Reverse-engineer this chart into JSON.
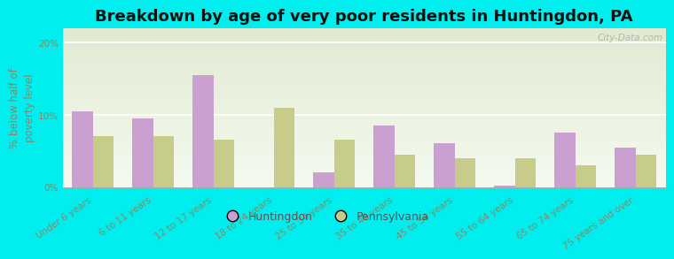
{
  "title": "Breakdown by age of very poor residents in Huntingdon, PA",
  "ylabel": "% below half of\npoverty level",
  "categories": [
    "Under 6 years",
    "6 to 11 years",
    "12 to 17 years",
    "18 to 24 years",
    "25 to 34 years",
    "35 to 44 years",
    "45 to 54 years",
    "55 to 64 years",
    "65 to 74 years",
    "75 years and over"
  ],
  "huntingdon_values": [
    10.5,
    9.5,
    15.5,
    0.0,
    2.0,
    8.5,
    6.0,
    0.2,
    7.5,
    5.5
  ],
  "pennsylvania_values": [
    7.0,
    7.0,
    6.5,
    11.0,
    6.5,
    4.5,
    4.0,
    4.0,
    3.0,
    4.5
  ],
  "huntingdon_color": "#c9a0d0",
  "pennsylvania_color": "#c8cc8a",
  "background_color": "#00eeee",
  "plot_bg_color": "#e8f0dc",
  "ylim": [
    0,
    22
  ],
  "yticks": [
    0,
    10,
    20
  ],
  "ytick_labels": [
    "0%",
    "10%",
    "20%"
  ],
  "bar_width": 0.35,
  "title_fontsize": 13,
  "axis_label_fontsize": 8.5,
  "tick_fontsize": 7.5,
  "label_color": "#888866",
  "legend_labels": [
    "Huntingdon",
    "Pennsylvania"
  ],
  "watermark": "City-Data.com"
}
